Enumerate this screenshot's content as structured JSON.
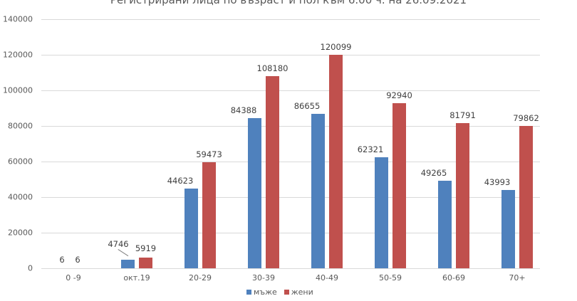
{
  "chart_data": {
    "type": "bar",
    "title": "Регистрирани лица по възраст и пол към 6.00 ч. на 26.09.2021",
    "xlabel": "",
    "ylabel": "",
    "categories": [
      "0 -9",
      "окт.19",
      "20-29",
      "30-39",
      "40-49",
      "50-59",
      "60-69",
      "70+"
    ],
    "series": [
      {
        "name": "мъже",
        "color": "#4f81bd",
        "values": [
          6,
          4746,
          44623,
          84388,
          86655,
          62321,
          49265,
          43993
        ]
      },
      {
        "name": "жени",
        "color": "#c0504d",
        "values": [
          6,
          5919,
          59473,
          108180,
          120099,
          92940,
          81791,
          79862
        ]
      }
    ],
    "ylim": [
      0,
      140000
    ],
    "yticks": [
      "0",
      "20000",
      "40000",
      "60000",
      "80000",
      "100000",
      "120000",
      "140000"
    ],
    "grid": true,
    "legend_position": "bottom",
    "data_labels": true
  }
}
